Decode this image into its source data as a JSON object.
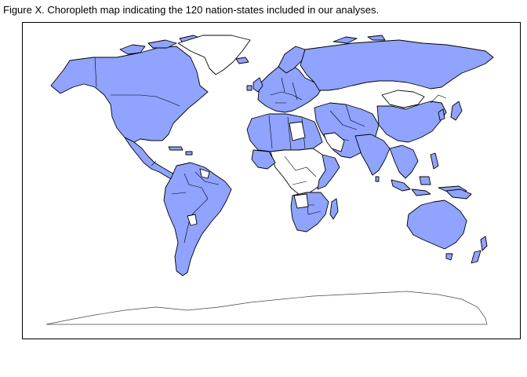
{
  "title": "Figure X. Choropleth map indicating the 120 nation-states included in our analyses.",
  "colors": {
    "included": "#8fa3ff",
    "excluded": "#ffffff",
    "border": "#000000"
  },
  "regions": [
    {
      "name": "north-america",
      "included": true
    },
    {
      "name": "greenland",
      "included": false
    },
    {
      "name": "mexico-central-america",
      "included": true
    },
    {
      "name": "south-america",
      "included": true
    },
    {
      "name": "europe",
      "included": true
    },
    {
      "name": "north-africa",
      "included": true
    },
    {
      "name": "central-africa",
      "included": false
    },
    {
      "name": "southern-africa",
      "included": true
    },
    {
      "name": "middle-east",
      "included": true
    },
    {
      "name": "russia",
      "included": true
    },
    {
      "name": "mongolia",
      "included": false
    },
    {
      "name": "china",
      "included": true
    },
    {
      "name": "south-asia",
      "included": true
    },
    {
      "name": "southeast-asia",
      "included": true
    },
    {
      "name": "japan",
      "included": true
    },
    {
      "name": "australia",
      "included": true
    },
    {
      "name": "new-zealand",
      "included": true
    },
    {
      "name": "antarctica",
      "included": false
    }
  ]
}
